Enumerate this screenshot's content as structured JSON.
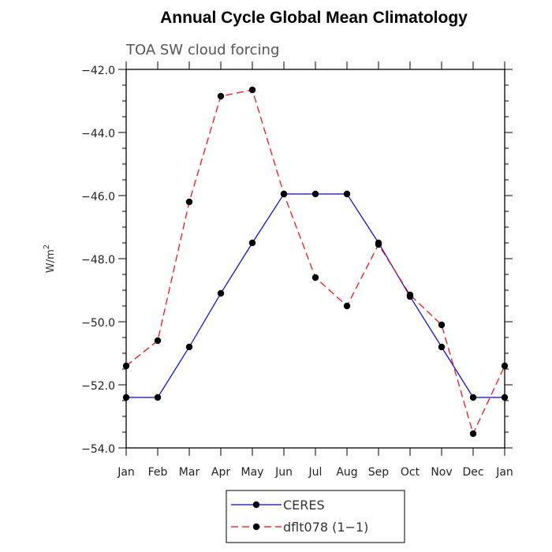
{
  "chart_data": {
    "type": "line",
    "title": "Annual Cycle Global Mean Climatology",
    "subtitle": "TOA SW cloud forcing",
    "ylabel": "W/m",
    "ylabel_sup": "2",
    "categories": [
      "Jan",
      "Feb",
      "Mar",
      "Apr",
      "May",
      "Jun",
      "Jul",
      "Aug",
      "Sep",
      "Oct",
      "Nov",
      "Dec",
      "Jan"
    ],
    "ylim": [
      -54,
      -42
    ],
    "yticks": [
      "-42.0",
      "-44.0",
      "-46.0",
      "-48.0",
      "-50.0",
      "-52.0",
      "-54.0"
    ],
    "grid": false,
    "legend_position": "bottom-center",
    "series": [
      {
        "name": "CERES",
        "color": "#0000ff",
        "dash": "solid",
        "values": [
          -52.4,
          -52.4,
          -50.8,
          -49.1,
          -47.5,
          -45.95,
          -45.95,
          -45.95,
          -47.5,
          -49.2,
          -50.8,
          -52.4,
          -52.4
        ]
      },
      {
        "name": "dflt078 (1-1)",
        "color": "#ff0000",
        "dash": "dashed",
        "values": [
          -51.4,
          -50.6,
          -46.2,
          -42.85,
          -42.65,
          -45.95,
          -48.6,
          -49.5,
          -47.55,
          -49.15,
          -50.1,
          -53.55,
          -51.4
        ]
      }
    ]
  }
}
